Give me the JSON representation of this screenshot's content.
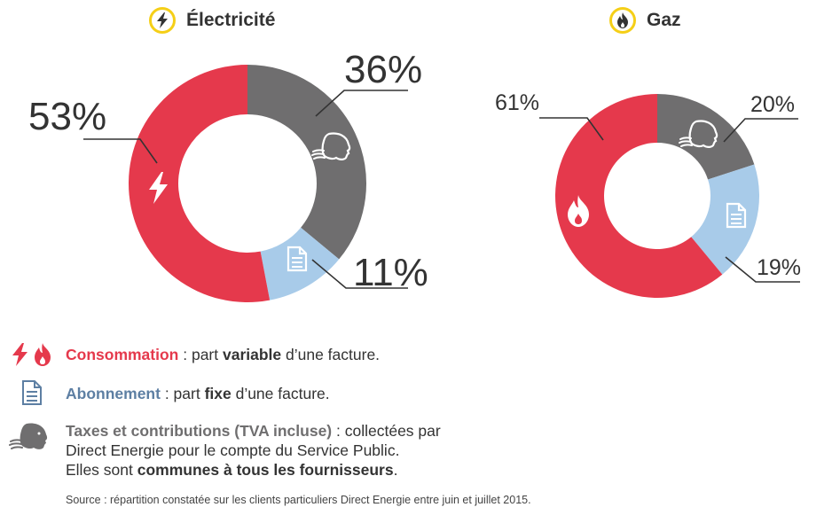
{
  "charts": [
    {
      "id": "elec",
      "title": "Électricité",
      "icon": "bolt-icon",
      "chart_data": {
        "type": "pie",
        "title": "Électricité",
        "categories": [
          "Taxes et contributions",
          "Abonnement",
          "Consommation"
        ],
        "values": [
          36,
          11,
          53
        ],
        "labels": [
          "36%",
          "11%",
          "53%"
        ]
      }
    },
    {
      "id": "gaz",
      "title": "Gaz",
      "icon": "flame-icon",
      "chart_data": {
        "type": "pie",
        "title": "Gaz",
        "categories": [
          "Taxes et contributions",
          "Abonnement",
          "Consommation"
        ],
        "values": [
          20,
          19,
          61
        ],
        "labels": [
          "20%",
          "19%",
          "61%"
        ]
      }
    }
  ],
  "colors": {
    "consommation": "#e5394c",
    "abonnement": "#a8cbe9",
    "taxes": "#6f6e6f",
    "badge": "#f5cf17"
  },
  "legend": {
    "consommation": {
      "name": "Consommation",
      "t1": " : part ",
      "kw": "variable",
      "t2": " d’une facture."
    },
    "abonnement": {
      "name": "Abonnement",
      "t1": " : part ",
      "kw": "fixe",
      "t2": " d’une facture."
    },
    "taxes": {
      "name": "Taxes et contributions (TVA incluse)",
      "t1": " : collectées par",
      "line2": "Direct Energie pour le compte du Service Public.",
      "line3a": "Elles sont ",
      "kw": "communes à tous les fournisseurs",
      "line3b": "."
    }
  },
  "source": "Source : répartition constatée sur les clients particuliers Direct Energie entre juin et juillet 2015."
}
